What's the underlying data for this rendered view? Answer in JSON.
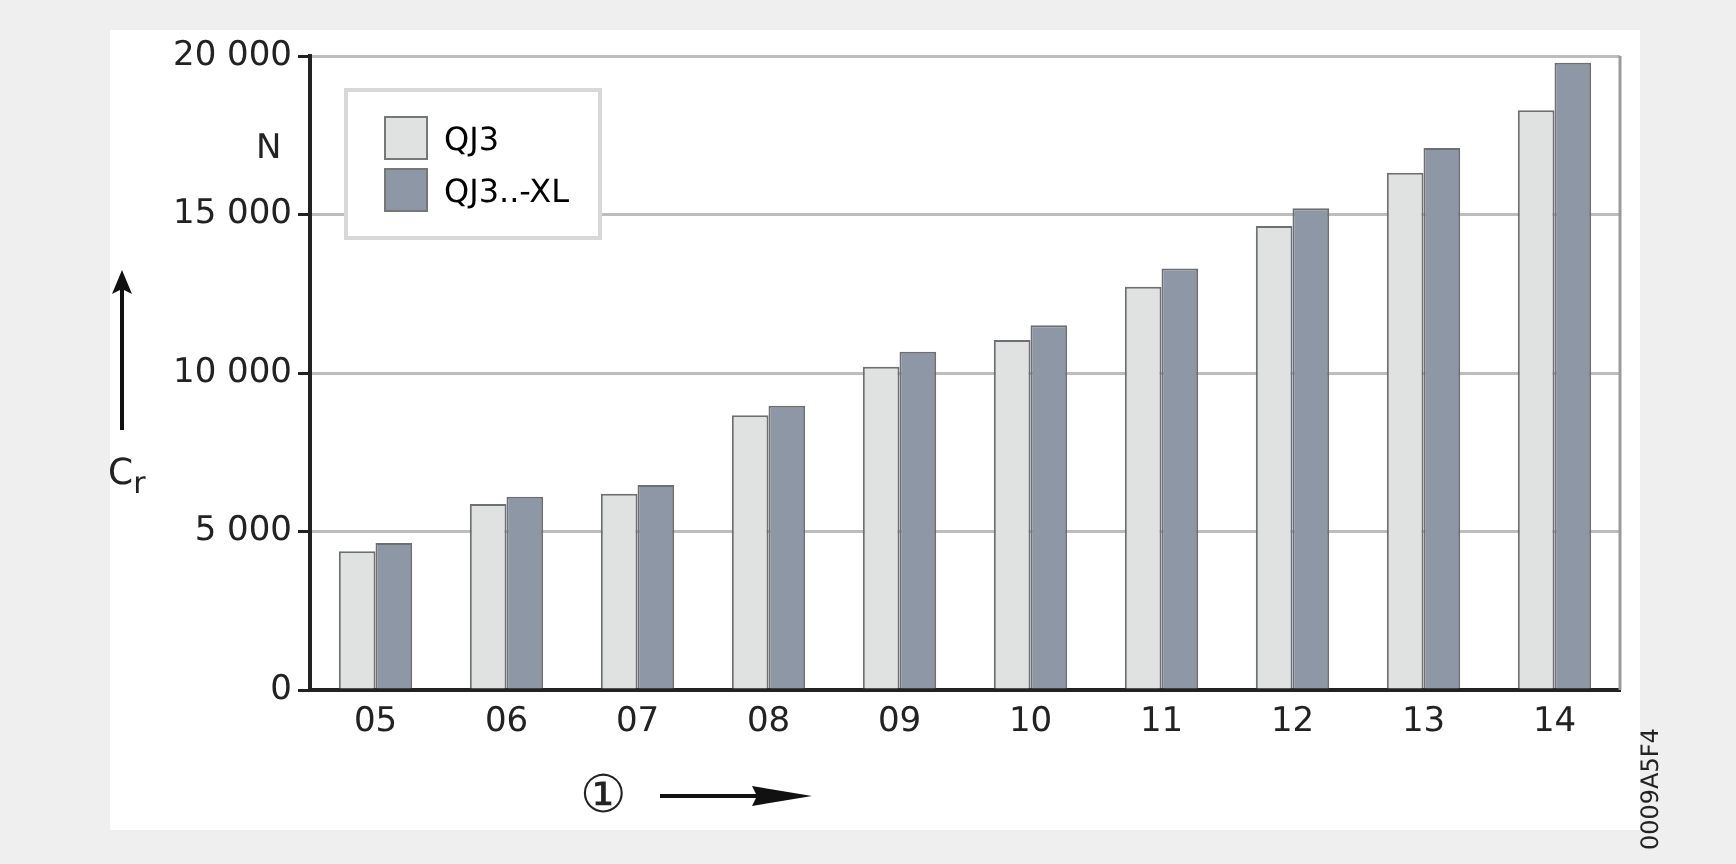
{
  "chart_data": {
    "type": "bar",
    "ylabel": "C$_{r}$",
    "xlabel": "①",
    "categories": [
      "05",
      "06",
      "07",
      "08",
      "09",
      "10",
      "11",
      "12",
      "13",
      "14"
    ],
    "series": [
      {
        "name": "QJ3",
        "color": "#e0e2e2",
        "values": [
          4380,
          5870,
          6190,
          8670,
          10200,
          11040,
          12720,
          14640,
          16320,
          18290
        ]
      },
      {
        "name": "QJ3..-XL",
        "color": "#8e97a5",
        "values": [
          4640,
          6100,
          6470,
          8970,
          10670,
          11510,
          13300,
          15200,
          17100,
          19790
        ]
      }
    ],
    "ylim": [
      0,
      20000
    ],
    "yticks": [
      0,
      {
        "value": 5000,
        "label": "5 000"
      },
      {
        "value": 10000,
        "label": "10 000"
      },
      {
        "value": 15000,
        "label": "15 000"
      },
      {
        "value": 20000,
        "label": "20 000"
      }
    ],
    "grid": "y",
    "legend": "top left",
    "annotations": [
      "N",
      "0009A5F4"
    ]
  }
}
